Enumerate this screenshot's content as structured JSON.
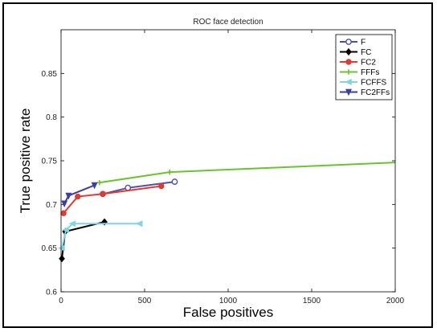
{
  "chart_data": {
    "type": "line",
    "title": "ROC face detection",
    "xlabel": "False positives",
    "ylabel": "True positive rate",
    "xlim": [
      0,
      2000
    ],
    "ylim": [
      0.6,
      0.9
    ],
    "xticks": [
      "0",
      "500",
      "1000",
      "1500",
      "2000"
    ],
    "yticks": [
      "0.6",
      "0.65",
      "0.7",
      "0.75",
      "0.8",
      "0.85"
    ],
    "grid": false,
    "legend_position": "top-right",
    "series": [
      {
        "name": "F",
        "color": "#4a4fb3",
        "marker": "open-circle",
        "points": [
          [
            250,
            0.712
          ],
          [
            400,
            0.719
          ],
          [
            680,
            0.726
          ]
        ]
      },
      {
        "name": "FC",
        "color": "#000000",
        "marker": "diamond",
        "points": [
          [
            5,
            0.638
          ],
          [
            25,
            0.669
          ],
          [
            260,
            0.68
          ]
        ]
      },
      {
        "name": "FC2",
        "color": "#e23a2e",
        "marker": "filled-circle",
        "points": [
          [
            15,
            0.69
          ],
          [
            100,
            0.709
          ],
          [
            250,
            0.712
          ],
          [
            600,
            0.721
          ]
        ]
      },
      {
        "name": "FFFs",
        "color": "#6ac52a",
        "marker": "plus",
        "points": [
          [
            230,
            0.725
          ],
          [
            650,
            0.737
          ],
          [
            2000,
            0.748
          ]
        ]
      },
      {
        "name": "FCFFS",
        "color": "#7fd6e0",
        "marker": "left-triangle",
        "points": [
          [
            5,
            0.65
          ],
          [
            30,
            0.671
          ],
          [
            70,
            0.678
          ],
          [
            470,
            0.678
          ]
        ]
      },
      {
        "name": "FC2FFs",
        "color": "#3a3fa8",
        "marker": "down-triangle",
        "points": [
          [
            20,
            0.701
          ],
          [
            45,
            0.71
          ],
          [
            200,
            0.722
          ]
        ]
      }
    ]
  }
}
